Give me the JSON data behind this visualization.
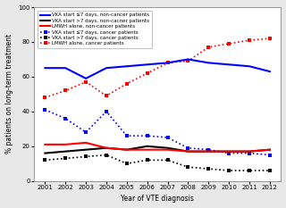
{
  "years": [
    2001,
    2002,
    2003,
    2004,
    2005,
    2006,
    2007,
    2008,
    2009,
    2010,
    2011,
    2012
  ],
  "vka_le7_noncancer": [
    65,
    65,
    59,
    65,
    66,
    67,
    68,
    70,
    68,
    67,
    66,
    63
  ],
  "vka_gt7_noncancer": [
    16,
    17,
    18,
    19,
    18,
    20,
    19,
    17,
    17,
    17,
    17,
    18
  ],
  "lmwh_noncancer": [
    21,
    21,
    22,
    19,
    18,
    18,
    18,
    17,
    17,
    17,
    17,
    18
  ],
  "vka_le7_cancer": [
    41,
    36,
    28,
    40,
    26,
    26,
    25,
    19,
    18,
    16,
    16,
    15
  ],
  "vka_gt7_cancer": [
    12,
    13,
    14,
    15,
    10,
    12,
    12,
    8,
    7,
    6,
    6,
    6
  ],
  "lmwh_cancer": [
    48,
    52,
    57,
    49,
    56,
    62,
    68,
    69,
    77,
    79,
    81,
    82
  ],
  "legend_labels": [
    "VKA start ≤7 days, non-cancer patients",
    "VKA start >7 days, non-cacner patients",
    "LMWH alone, non-cancer patients",
    "VKA start ≤7 days, cancer patients",
    "VKA start >7 days, cancer patients",
    "LMWH alone, cancer patients"
  ],
  "xlabel": "Year of VTE diagnosis",
  "ylabel": "% patients on long-term treatment",
  "ylim": [
    0,
    100
  ],
  "yticks": [
    0,
    20,
    40,
    60,
    80,
    100
  ],
  "fig_facecolor": "#e8e8e8",
  "plot_facecolor": "#ffffff",
  "solid_lw": 1.5,
  "dot_lw": 1.2,
  "marker_size": 3.0
}
